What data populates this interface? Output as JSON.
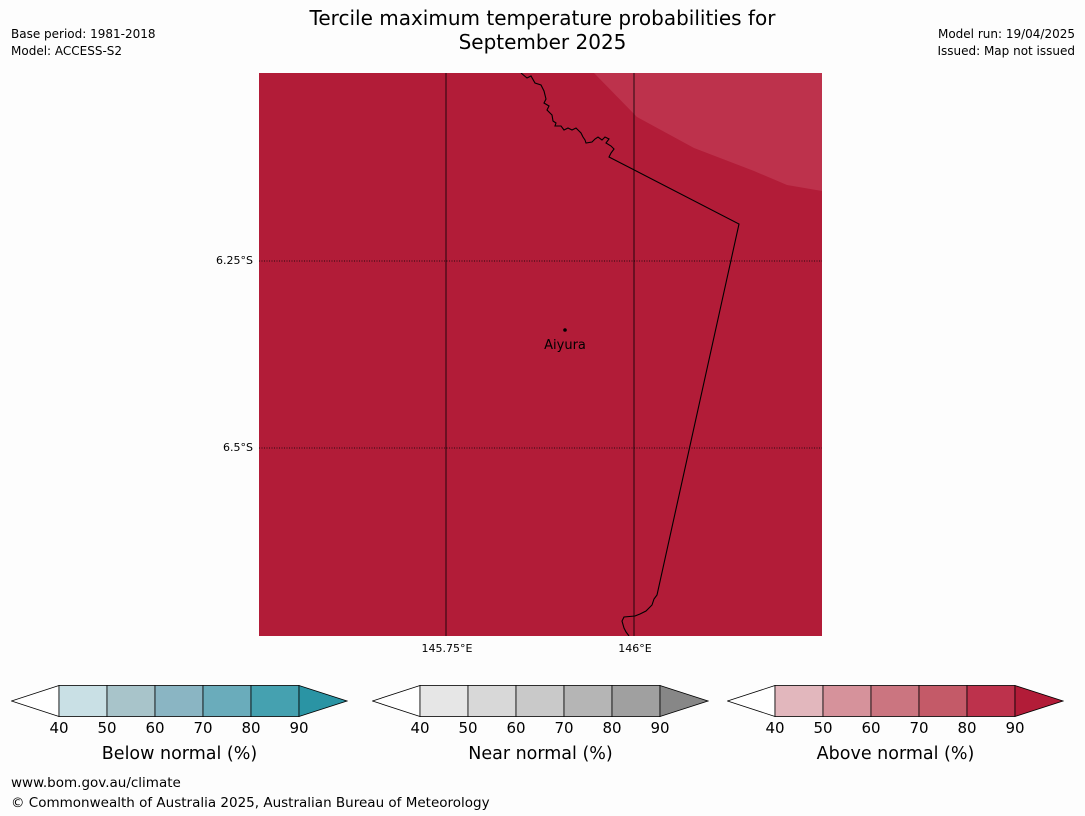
{
  "header": {
    "title_line1": "Tercile maximum temperature probabilities for",
    "title_line2": "September 2025",
    "base_period": "Base period: 1981-2018",
    "model": "Model: ACCESS-S2",
    "model_run": "Model run: 19/04/2025",
    "issued": "Issued: Map not issued"
  },
  "map": {
    "lat_labels": [
      "6.25°S",
      "6.5°S"
    ],
    "lon_labels": [
      "145.75°E",
      "146°E"
    ],
    "place_label": "Aiyura",
    "colors": {
      "main_fill": "#b21c38",
      "lighter_fill": "#bd324c",
      "coastline": "#000000"
    }
  },
  "colorbars": [
    {
      "label": "Below normal (%)",
      "ticks": [
        "40",
        "50",
        "60",
        "70",
        "80",
        "90"
      ],
      "colors": [
        "#ffffff",
        "#c9e0e5",
        "#a8c4ca",
        "#8ab5c3",
        "#6aacbb",
        "#45a1b0",
        "#2a94a4"
      ]
    },
    {
      "label": "Near normal (%)",
      "ticks": [
        "40",
        "50",
        "60",
        "70",
        "80",
        "90"
      ],
      "colors": [
        "#ffffff",
        "#e6e6e6",
        "#d8d8d8",
        "#c9c9c9",
        "#b5b5b5",
        "#a0a0a0",
        "#878787"
      ]
    },
    {
      "label": "Above normal (%)",
      "ticks": [
        "40",
        "50",
        "60",
        "70",
        "80",
        "90"
      ],
      "colors": [
        "#ffffff",
        "#e2b7bd",
        "#d6929b",
        "#cb7580",
        "#c45a68",
        "#bd324c",
        "#b21c38"
      ]
    }
  ],
  "footer": {
    "url": "www.bom.gov.au/climate",
    "copyright": "© Commonwealth of Australia 2025, Australian Bureau of Meteorology"
  }
}
